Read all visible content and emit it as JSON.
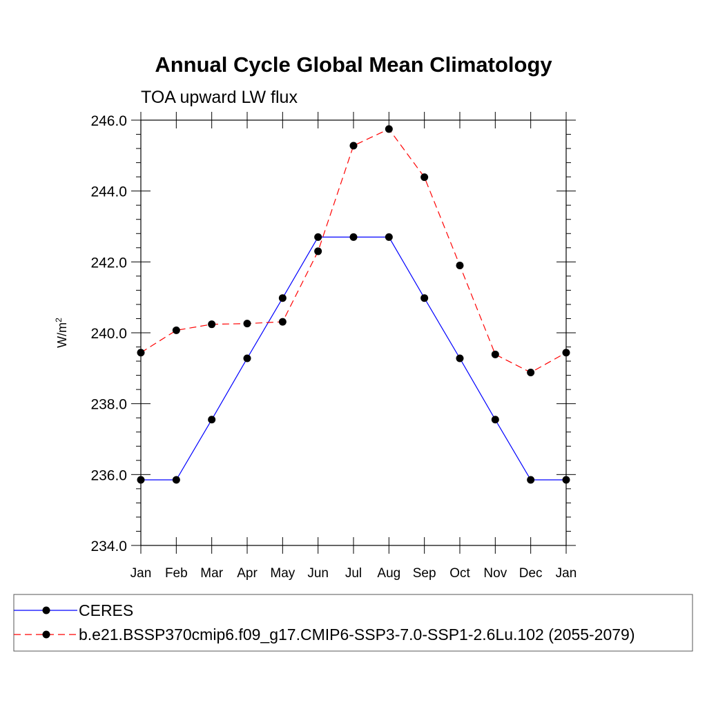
{
  "chart_data": {
    "type": "line",
    "title": "Annual Cycle Global Mean Climatology",
    "subtitle": "TOA upward LW flux",
    "ylabel": "W/m",
    "ylabel_sup": "2",
    "categories": [
      "Jan",
      "Feb",
      "Mar",
      "Apr",
      "May",
      "Jun",
      "Jul",
      "Aug",
      "Sep",
      "Oct",
      "Nov",
      "Dec",
      "Jan"
    ],
    "ylim": [
      234.0,
      246.0
    ],
    "yticks": [
      "234.0",
      "236.0",
      "238.0",
      "240.0",
      "242.0",
      "244.0",
      "246.0"
    ],
    "series": [
      {
        "name": "CERES",
        "color": "#0000ff",
        "dash": "solid",
        "values": [
          235.85,
          235.85,
          237.55,
          239.28,
          240.98,
          242.7,
          242.7,
          242.7,
          240.98,
          239.28,
          237.55,
          235.85,
          235.85
        ]
      },
      {
        "name": "b.e21.BSSP370cmip6.f09_g17.CMIP6-SSP3-7.0-SSP1-2.6Lu.102 (2055-2079)",
        "color": "#ff0000",
        "dash": "dashed",
        "values": [
          239.44,
          240.07,
          240.24,
          240.26,
          240.31,
          242.3,
          245.28,
          245.75,
          244.39,
          241.9,
          239.39,
          238.88,
          239.44
        ]
      }
    ],
    "legend_position": "bottom"
  }
}
